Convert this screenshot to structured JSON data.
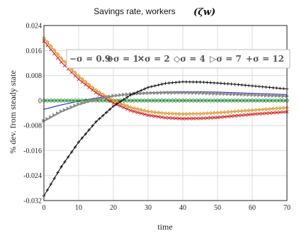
{
  "chart_data": {
    "type": "line",
    "title": "Savings rate, workers",
    "title_symbol": "(ζw)",
    "xlabel": "time",
    "ylabel": "% dev. from steady state",
    "xlim": [
      0,
      70
    ],
    "ylim": [
      -0.032,
      0.024
    ],
    "xticks": [
      0,
      10,
      20,
      30,
      40,
      50,
      60,
      70
    ],
    "yticks": [
      -0.032,
      -0.024,
      -0.016,
      -0.008,
      0,
      0.008,
      0.016,
      0.024
    ],
    "xtick_labels": [
      "0",
      "10",
      "20",
      "30",
      "40",
      "50",
      "60",
      "70"
    ],
    "ytick_labels": [
      "-0.032",
      "-0.024",
      "-0.016",
      "-0.008",
      "0",
      "0.008",
      "0.016",
      "0.024"
    ],
    "grid": true,
    "legend_placement": "top-right",
    "x": [
      0,
      5,
      10,
      15,
      20,
      25,
      30,
      35,
      40,
      45,
      50,
      55,
      60,
      65,
      70
    ],
    "series": [
      {
        "name": "σ = 0.9",
        "legend_label": "−σ = 0.9",
        "color": "#1f2bd6",
        "marker": "none",
        "values": [
          -0.0028,
          -0.0014,
          -0.0002,
          0.0008,
          0.0015,
          0.0021,
          0.0025,
          0.0027,
          0.0028,
          0.0028,
          0.0027,
          0.0025,
          0.0023,
          0.0021,
          0.0019
        ]
      },
      {
        "name": "σ = 1",
        "legend_label": "⊖σ = 1",
        "color": "#1e8a2e",
        "marker": "circle",
        "values": [
          0,
          0,
          0,
          0,
          0,
          0,
          0,
          0,
          0,
          0,
          0,
          0,
          0,
          0,
          0
        ]
      },
      {
        "name": "σ = 2",
        "legend_label": "✕σ = 2",
        "color": "#d42020",
        "marker": "x",
        "values": [
          0.019,
          0.0123,
          0.0068,
          0.0025,
          -0.0008,
          -0.0032,
          -0.0047,
          -0.0055,
          -0.0058,
          -0.0057,
          -0.0054,
          -0.0049,
          -0.0044,
          -0.004,
          -0.0036
        ]
      },
      {
        "name": "σ = 4",
        "legend_label": "◇σ = 4",
        "color": "#d9962e",
        "marker": "diamond",
        "values": [
          0.02,
          0.0135,
          0.0078,
          0.0033,
          0.0,
          -0.0022,
          -0.0035,
          -0.0041,
          -0.0043,
          -0.0042,
          -0.0039,
          -0.0035,
          -0.0031,
          -0.0027,
          -0.0023
        ]
      },
      {
        "name": "σ = 7",
        "legend_label": "▷σ = 7",
        "color": "#8a8a8a",
        "marker": "triangle",
        "values": [
          -0.0065,
          -0.0035,
          -0.0012,
          0.0004,
          0.0015,
          0.0021,
          0.0024,
          0.0025,
          0.0025,
          0.0024,
          0.0022,
          0.002,
          0.0018,
          0.0016,
          0.0014
        ]
      },
      {
        "name": "σ = 12",
        "legend_label": "+σ = 12",
        "color": "#111111",
        "marker": "plus",
        "values": [
          -0.0305,
          -0.0212,
          -0.0133,
          -0.0068,
          -0.0018,
          0.0018,
          0.0042,
          0.0055,
          0.006,
          0.0059,
          0.0056,
          0.0052,
          0.0047,
          0.0042,
          0.0037
        ]
      }
    ]
  }
}
